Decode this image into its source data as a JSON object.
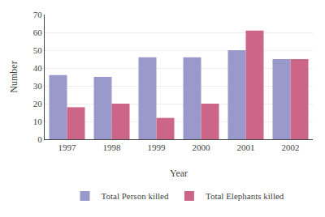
{
  "chart_data": {
    "type": "bar",
    "categories": [
      "1997",
      "1998",
      "1999",
      "2000",
      "2001",
      "2002"
    ],
    "series": [
      {
        "name": "Total Person killed",
        "color": "#9999CC",
        "values": [
          36,
          35,
          46,
          46,
          50,
          45
        ]
      },
      {
        "name": "Total Elephants killed",
        "color": "#CC6688",
        "values": [
          18,
          20,
          12,
          20,
          61,
          45
        ]
      }
    ],
    "xlabel": "Year",
    "ylabel": "Number",
    "ylim": [
      0,
      70
    ],
    "yticks": [
      0,
      10,
      20,
      30,
      40,
      50,
      60,
      70
    ],
    "grid": true,
    "legend": "bottom"
  }
}
